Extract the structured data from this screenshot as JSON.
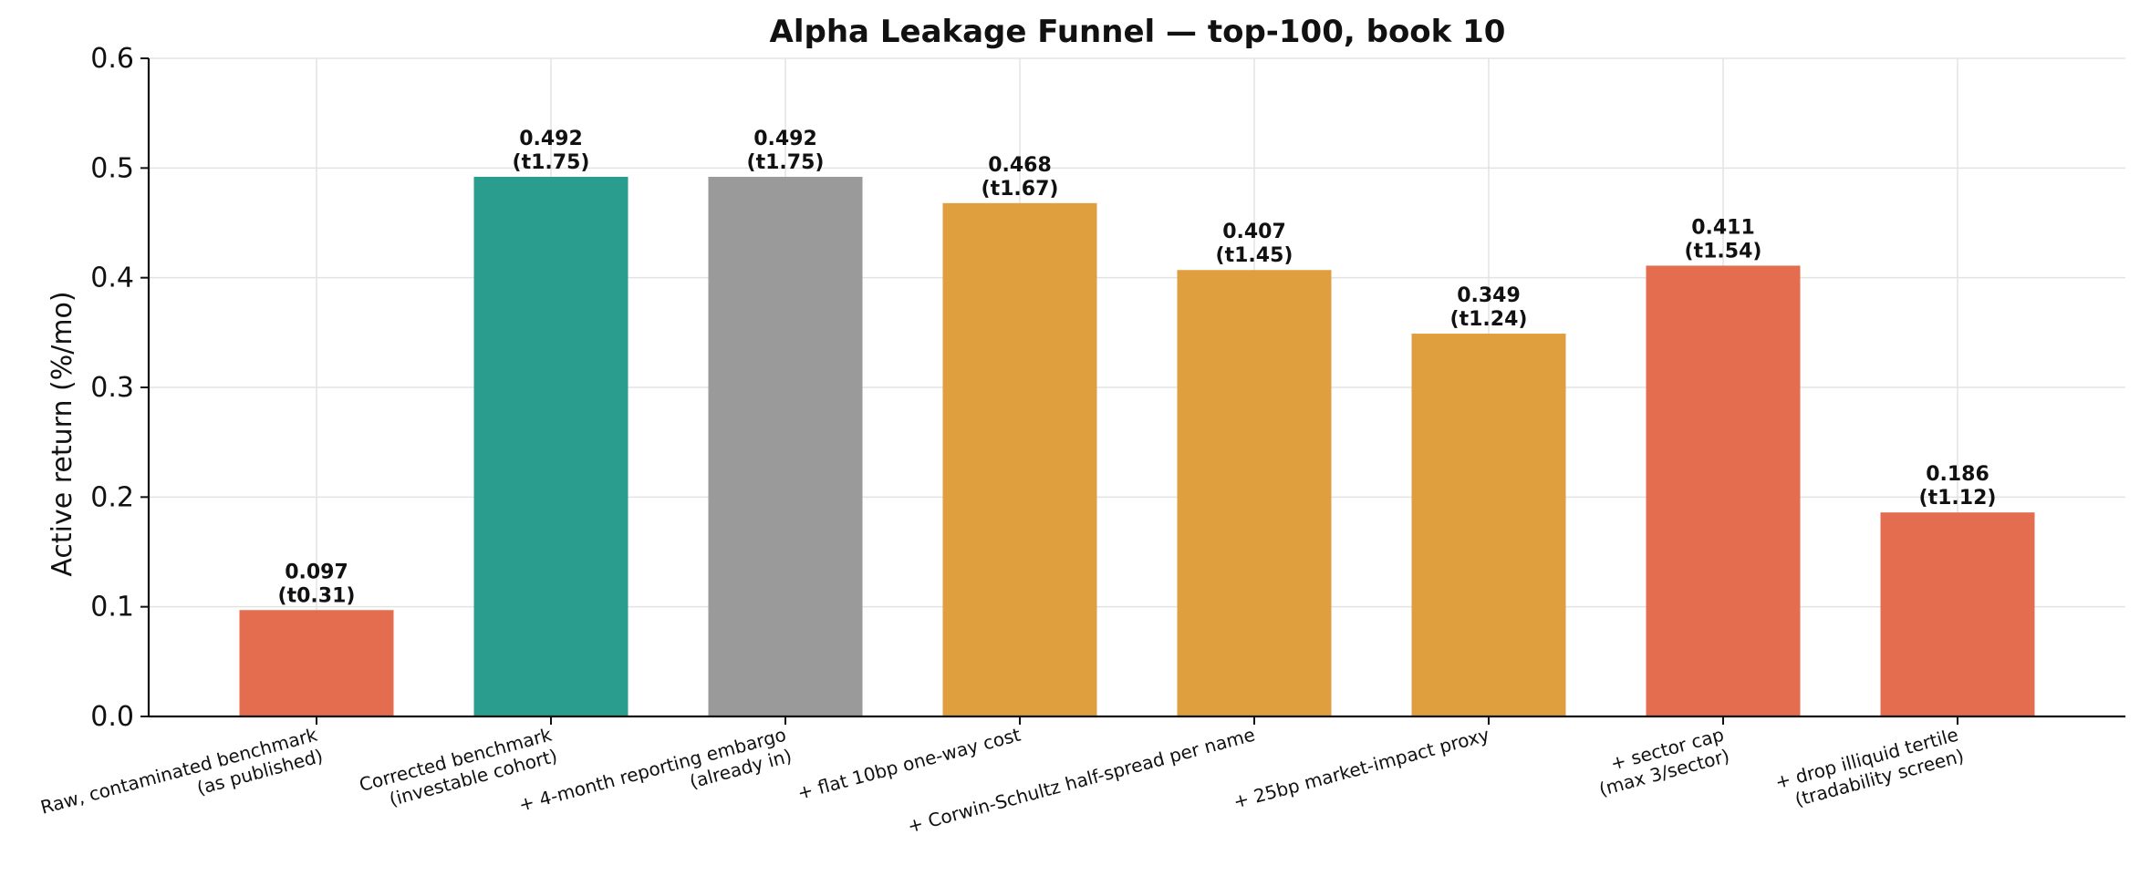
{
  "chart_data": {
    "type": "bar",
    "title": "Alpha Leakage Funnel — top-100, book 10",
    "xlabel": "",
    "ylabel": "Active return (%/mo)",
    "ylim": [
      0,
      0.6
    ],
    "yticks": [
      "0.0",
      "0.1",
      "0.2",
      "0.3",
      "0.4",
      "0.5",
      "0.6"
    ],
    "grid": true,
    "categories": [
      [
        "Raw, contaminated benchmark",
        "(as published)"
      ],
      [
        "Corrected benchmark",
        "(investable cohort)"
      ],
      [
        "+ 4-month reporting embargo",
        "(already in)"
      ],
      [
        "+ flat 10bp one-way cost"
      ],
      [
        "+ Corwin-Schultz half-spread per name"
      ],
      [
        "+ 25bp market-impact proxy"
      ],
      [
        "+ sector cap",
        "(max 3/sector)"
      ],
      [
        "+ drop illiquid tertile",
        "(tradability screen)"
      ]
    ],
    "values": [
      0.097,
      0.492,
      0.492,
      0.468,
      0.407,
      0.349,
      0.411,
      0.186
    ],
    "labels": [
      [
        "0.097",
        "(t0.31)"
      ],
      [
        "0.492",
        "(t1.75)"
      ],
      [
        "0.492",
        "(t1.75)"
      ],
      [
        "0.468",
        "(t1.67)"
      ],
      [
        "0.407",
        "(t1.45)"
      ],
      [
        "0.349",
        "(t1.24)"
      ],
      [
        "0.411",
        "(t1.54)"
      ],
      [
        "0.186",
        "(t1.12)"
      ]
    ],
    "colors": [
      "#e46c4f",
      "#2a9d8f",
      "#9a9a9a",
      "#e09f3e",
      "#e09f3e",
      "#e09f3e",
      "#e46c4f",
      "#e46c4f"
    ]
  }
}
